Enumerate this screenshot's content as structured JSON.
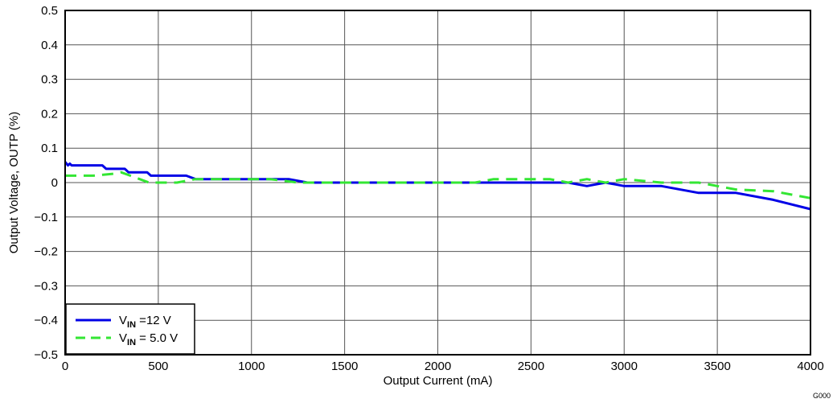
{
  "chart_data": {
    "type": "line",
    "xlabel": "Output Current (mA)",
    "ylabel": "Output Voltage, OUTP (%)",
    "xlim": [
      0,
      4000
    ],
    "ylim": [
      -0.5,
      0.5
    ],
    "xticks": [
      0,
      500,
      1000,
      1500,
      2000,
      2500,
      3000,
      3500,
      4000
    ],
    "xtick_labels": [
      "0",
      "500",
      "1000",
      "1500",
      "2000",
      "2500",
      "3000",
      "3500",
      "4000"
    ],
    "yticks": [
      0.5,
      0.4,
      0.3,
      0.2,
      0.1,
      0,
      -0.1,
      -0.2,
      -0.3,
      -0.4,
      -0.5
    ],
    "ytick_labels": [
      "0.5",
      "0.4",
      "0.3",
      "0.2",
      "0.1",
      "0",
      "−0.1",
      "−0.2",
      "−0.3",
      "−0.4",
      "−0.5"
    ],
    "grid": true,
    "legend_position": "bottom-left",
    "series": [
      {
        "name_main": "V",
        "name_sub": "IN",
        "name_rest": " =12 V",
        "color": "#0000e6",
        "dash": "solid",
        "x": [
          0,
          15,
          25,
          35,
          50,
          100,
          200,
          220,
          320,
          340,
          440,
          460,
          650,
          700,
          1000,
          1200,
          1300,
          2700,
          2800,
          2900,
          3000,
          3200,
          3400,
          3600,
          3800,
          4000
        ],
        "y": [
          0.06,
          0.05,
          0.055,
          0.05,
          0.05,
          0.05,
          0.05,
          0.04,
          0.04,
          0.03,
          0.03,
          0.02,
          0.02,
          0.01,
          0.01,
          0.01,
          0.0,
          0.0,
          -0.01,
          0.0,
          -0.01,
          -0.01,
          -0.03,
          -0.03,
          -0.05,
          -0.077
        ]
      },
      {
        "name_main": "V",
        "name_sub": "IN",
        "name_rest": " = 5.0 V",
        "color": "#33e633",
        "dash": "dashed",
        "x": [
          0,
          150,
          250,
          300,
          350,
          400,
          450,
          500,
          600,
          700,
          1000,
          1100,
          1250,
          2200,
          2300,
          2600,
          2700,
          2800,
          2900,
          3000,
          3200,
          3400,
          3600,
          3800,
          4000
        ],
        "y": [
          0.02,
          0.02,
          0.025,
          0.03,
          0.02,
          0.01,
          0.0,
          0.0,
          0.0,
          0.01,
          0.01,
          0.01,
          0.0,
          0.0,
          0.01,
          0.01,
          0.0,
          0.01,
          0.0,
          0.01,
          0.0,
          0.0,
          -0.02,
          -0.025,
          -0.045
        ]
      }
    ]
  },
  "corner_code": "G000"
}
